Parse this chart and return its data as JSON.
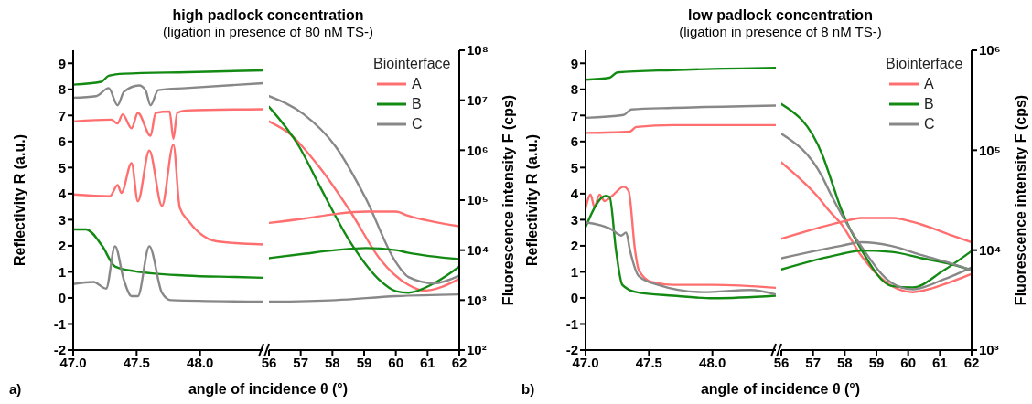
{
  "chart_data": [
    {
      "type": "line",
      "title": "high padlock concentration",
      "subtitle": "(ligation in presence of 80 nM TS-)",
      "xlabel": "angle of incidence θ (°)",
      "ylabel": "Reflectivity R (a.u.)",
      "legend_title": "Biointerface",
      "legend": "top right",
      "annotations": [
        "a)"
      ],
      "tick_labels": "x,y",
      "log": "y2",
      "xlim": [
        47,
        48.5
      ],
      "xticks": [
        {
          "value": 47,
          "label": "47.0"
        },
        {
          "value": 47.5,
          "label": "47.5"
        },
        {
          "value": 48,
          "label": "48.0"
        }
      ],
      "ylim": [
        -2,
        9.5
      ],
      "yticks": [
        -2,
        -1,
        0,
        1,
        2,
        3,
        4,
        5,
        6,
        7,
        8,
        9
      ],
      "y2lim": [
        100,
        100000000
      ],
      "series": [
        {
          "name": "A",
          "color": "#ff6f6f",
          "x": [
            47.0,
            47.3,
            47.35,
            47.39,
            47.46,
            47.51,
            47.61,
            47.65,
            47.76,
            47.79,
            47.82,
            47.89,
            48.5
          ],
          "values": [
            6.77,
            6.84,
            6.69,
            7.04,
            6.51,
            7.1,
            6.22,
            7.1,
            7.15,
            6.1,
            7.1,
            7.19,
            7.24
          ]
        },
        {
          "name": "B",
          "color": "#138a13",
          "x": [
            47.0,
            47.22,
            47.28,
            47.4,
            47.9,
            48.5
          ],
          "values": [
            8.18,
            8.29,
            8.52,
            8.6,
            8.66,
            8.73
          ]
        },
        {
          "name": "C",
          "color": "#888888",
          "x": [
            47.0,
            47.18,
            47.28,
            47.35,
            47.4,
            47.52,
            47.57,
            47.61,
            47.67,
            47.89,
            48.5
          ],
          "values": [
            7.68,
            7.74,
            8.05,
            7.39,
            7.91,
            8.15,
            7.97,
            7.39,
            7.97,
            8.05,
            8.24
          ]
        },
        {
          "color": "#ff6f6f",
          "axis": "y2",
          "x": [
            47.0,
            47.29,
            47.35,
            47.38,
            47.46,
            47.51,
            47.6,
            47.7,
            47.79,
            47.84,
            47.91,
            48.13,
            48.5
          ],
          "values": [
            130000,
            120000,
            200000,
            140000,
            550000,
            95000,
            980000,
            77000,
            1300000,
            71000,
            38000,
            15000,
            13000
          ]
        },
        {
          "color": "#138a13",
          "axis": "y2",
          "x": [
            47.0,
            47.1,
            47.23,
            47.33,
            47.48,
            47.89,
            48.28,
            48.5
          ],
          "values": [
            26000,
            26000,
            12000,
            4700,
            3800,
            3100,
            2900,
            2800
          ]
        },
        {
          "color": "#888888",
          "axis": "y2",
          "x": [
            47.0,
            47.16,
            47.26,
            47.33,
            47.4,
            47.46,
            47.51,
            47.6,
            47.7,
            47.77,
            48.5
          ],
          "values": [
            2100,
            2300,
            1700,
            12000,
            2500,
            1200,
            1200,
            12000,
            1400,
            1000,
            930
          ]
        }
      ]
    },
    {
      "type": "line",
      "y2label": "Fluorescence intensity F (cps)",
      "tick_labels": "x,y2",
      "log": "y2",
      "xlim": [
        56,
        62
      ],
      "xticks": [
        56,
        57,
        58,
        59,
        60,
        61,
        62
      ],
      "ylim": [
        -2,
        9.5
      ],
      "y2lim": [
        100,
        100000000
      ],
      "y2ticks": [
        {
          "value": 100,
          "label": "10²"
        },
        {
          "value": 1000,
          "label": "10³"
        },
        {
          "value": 10000,
          "label": "10⁴"
        },
        {
          "value": 100000,
          "label": "10⁵"
        },
        {
          "value": 1000000,
          "label": "10⁶"
        },
        {
          "value": 10000000,
          "label": "10⁷"
        },
        {
          "value": 100000000,
          "label": "10⁸"
        }
      ],
      "series": [
        {
          "color": "#ff6f6f",
          "x": [
            56,
            56.67,
            57.6,
            58.6,
            59.5,
            60.4,
            60.9,
            62
          ],
          "values": [
            6.77,
            6.28,
            5.0,
            3.25,
            1.49,
            0.5,
            0.28,
            0.73
          ]
        },
        {
          "color": "#138a13",
          "x": [
            56,
            56.95,
            57.6,
            58.6,
            59.5,
            60,
            60.4,
            61.2,
            62
          ],
          "values": [
            7.33,
            5.81,
            4.29,
            2.07,
            0.67,
            0.26,
            0.2,
            0.56,
            1.2
          ]
        },
        {
          "color": "#888888",
          "x": [
            56,
            57.1,
            58.1,
            59.05,
            60,
            60.4,
            61.2,
            62
          ],
          "values": [
            7.74,
            7.04,
            5.81,
            3.82,
            1.37,
            0.8,
            0.56,
            0.85
          ]
        },
        {
          "color": "#ff6f6f",
          "axis": "y2",
          "x": [
            56,
            57.14,
            58.1,
            59.05,
            60,
            60.38,
            62
          ],
          "values": [
            35000,
            43000,
            53000,
            59000,
            59000,
            49000,
            30000
          ]
        },
        {
          "color": "#138a13",
          "axis": "y2",
          "x": [
            56,
            57.14,
            58.1,
            59.05,
            60,
            60.37,
            62
          ],
          "values": [
            6900,
            8500,
            10000,
            11000,
            10000,
            8900,
            6600
          ]
        },
        {
          "color": "#888888",
          "axis": "y2",
          "x": [
            56,
            58.1,
            60,
            62
          ],
          "values": [
            930,
            1000,
            1200,
            1300
          ]
        }
      ]
    },
    {
      "type": "line",
      "title": "low padlock concentration",
      "subtitle": "(ligation in presence of 8 nM TS-)",
      "xlabel": "angle of incidence θ (°)",
      "ylabel": "Reflectivity R (a.u.)",
      "legend_title": "Biointerface",
      "legend": "top right",
      "annotations": [
        "b)"
      ],
      "tick_labels": "x,y",
      "log": "y2",
      "xlim": [
        47,
        48.5
      ],
      "xticks": [
        {
          "value": 47,
          "label": "47.0"
        },
        {
          "value": 47.5,
          "label": "47.5"
        },
        {
          "value": 48,
          "label": "48.0"
        }
      ],
      "ylim": [
        -2,
        9.5
      ],
      "yticks": [
        -2,
        -1,
        0,
        1,
        2,
        3,
        4,
        5,
        6,
        7,
        8,
        9
      ],
      "y2lim": [
        1000,
        1000000
      ],
      "series": [
        {
          "name": "A",
          "color": "#ff6f6f",
          "x": [
            47.0,
            47.35,
            47.4,
            47.69,
            48.5
          ],
          "values": [
            6.33,
            6.38,
            6.56,
            6.63,
            6.63
          ]
        },
        {
          "name": "B",
          "color": "#138a13",
          "x": [
            47.0,
            47.19,
            47.25,
            47.69,
            48.5
          ],
          "values": [
            8.37,
            8.45,
            8.65,
            8.74,
            8.83
          ]
        },
        {
          "name": "C",
          "color": "#888888",
          "x": [
            47.0,
            47.3,
            47.36,
            47.69,
            48.5
          ],
          "values": [
            6.91,
            7.02,
            7.23,
            7.29,
            7.38
          ]
        },
        {
          "color": "#ff6f6f",
          "axis": "y2",
          "x": [
            47.0,
            47.04,
            47.07,
            47.11,
            47.15,
            47.21,
            47.3,
            47.34,
            47.39,
            47.42,
            47.52,
            47.69,
            48.01,
            48.5
          ],
          "values": [
            26000,
            36000,
            27000,
            36000,
            31000,
            35000,
            43000,
            39000,
            10000,
            6300,
            4800,
            4500,
            4500,
            4200
          ]
        },
        {
          "color": "#138a13",
          "axis": "y2",
          "x": [
            47.0,
            47.16,
            47.19,
            47.24,
            47.29,
            47.4,
            47.69,
            48.01,
            48.5
          ],
          "values": [
            17000,
            35000,
            34000,
            10000,
            4500,
            3800,
            3500,
            3300,
            3500
          ]
        },
        {
          "color": "#888888",
          "axis": "y2",
          "x": [
            47.0,
            47.21,
            47.28,
            47.32,
            47.35,
            47.42,
            47.57,
            47.93,
            48.3,
            48.5
          ],
          "values": [
            19000,
            16000,
            14000,
            15000,
            10000,
            5500,
            4500,
            3800,
            4000,
            3600
          ]
        }
      ]
    },
    {
      "type": "line",
      "y2label": "Fluorescence intensity F (cps)",
      "tick_labels": "x,y2",
      "log": "y2",
      "xlim": [
        56,
        62
      ],
      "xticks": [
        56,
        57,
        58,
        59,
        60,
        61,
        62
      ],
      "ylim": [
        -2,
        9.5
      ],
      "y2lim": [
        1000,
        1000000
      ],
      "y2ticks": [
        {
          "value": 1000,
          "label": "10³"
        },
        {
          "value": 10000,
          "label": "10⁴"
        },
        {
          "value": 100000,
          "label": "10⁵"
        },
        {
          "value": 1000000,
          "label": "10⁶"
        }
      ],
      "series": [
        {
          "color": "#ff6f6f",
          "x": [
            56,
            57.1,
            57.57,
            57.86,
            58.52,
            59.48,
            60.14,
            61.1,
            62
          ],
          "values": [
            5.2,
            3.95,
            3.26,
            2.88,
            1.62,
            0.46,
            0.22,
            0.51,
            0.92
          ]
        },
        {
          "color": "#138a13",
          "x": [
            56,
            57.3,
            57.57,
            57.86,
            58.52,
            59.48,
            60.14,
            61.1,
            62
          ],
          "values": [
            7.44,
            5.47,
            4.53,
            3.49,
            1.86,
            0.46,
            0.4,
            1.04,
            1.8
          ]
        },
        {
          "color": "#888888",
          "x": [
            56,
            57.29,
            57.57,
            58.52,
            59.48,
            60.14,
            61.1,
            62
          ],
          "values": [
            6.3,
            4.65,
            3.95,
            1.98,
            0.58,
            0.33,
            0.7,
            1.17
          ]
        },
        {
          "color": "#ff6f6f",
          "axis": "y2",
          "x": [
            56,
            57.86,
            58.52,
            59.48,
            60.43,
            61.38,
            62
          ],
          "values": [
            13000,
            19000,
            21000,
            21000,
            18000,
            14000,
            12000
          ]
        },
        {
          "color": "#138a13",
          "axis": "y2",
          "x": [
            56,
            57.86,
            58.52,
            59.48,
            60.43,
            61.38,
            62
          ],
          "values": [
            6400,
            9100,
            9900,
            9600,
            8300,
            7200,
            6300
          ]
        },
        {
          "color": "#888888",
          "axis": "y2",
          "x": [
            56,
            57.86,
            58.52,
            59.48,
            60.43,
            61.38,
            62
          ],
          "values": [
            8300,
            11000,
            12000,
            11000,
            8900,
            7300,
            6300
          ]
        }
      ]
    }
  ]
}
